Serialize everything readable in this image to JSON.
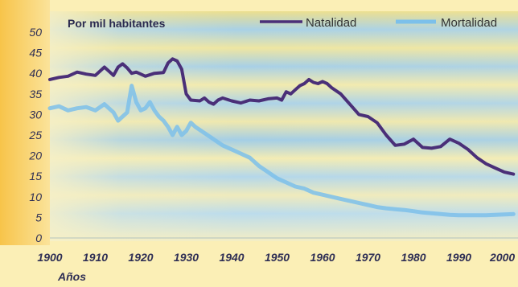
{
  "chart_data": {
    "type": "line",
    "unit_label": "Por mil habitantes",
    "xlabel": "Años",
    "ylabel": "",
    "xlim": [
      1900,
      2003
    ],
    "ylim": [
      0,
      50
    ],
    "x_ticks": [
      1900,
      1910,
      1920,
      1930,
      1940,
      1950,
      1960,
      1970,
      1980,
      1990,
      2000
    ],
    "y_ticks": [
      0,
      5,
      10,
      15,
      20,
      25,
      30,
      35,
      40,
      45,
      50
    ],
    "legend_position": "top-right",
    "grid": false,
    "series": [
      {
        "name": "Natalidad",
        "color": "#4a2f78",
        "points": [
          [
            1900,
            38.5
          ],
          [
            1902,
            39
          ],
          [
            1904,
            39.3
          ],
          [
            1906,
            40.3
          ],
          [
            1908,
            39.8
          ],
          [
            1910,
            39.5
          ],
          [
            1912,
            41.5
          ],
          [
            1913,
            40.5
          ],
          [
            1914,
            39.5
          ],
          [
            1915,
            41.5
          ],
          [
            1916,
            42.3
          ],
          [
            1917,
            41.3
          ],
          [
            1918,
            40
          ],
          [
            1919,
            40.3
          ],
          [
            1920,
            39.8
          ],
          [
            1921,
            39.3
          ],
          [
            1923,
            40
          ],
          [
            1925,
            40.2
          ],
          [
            1926,
            42.5
          ],
          [
            1927,
            43.5
          ],
          [
            1928,
            43
          ],
          [
            1929,
            41
          ],
          [
            1930,
            35
          ],
          [
            1931,
            33.5
          ],
          [
            1933,
            33.3
          ],
          [
            1934,
            34
          ],
          [
            1935,
            33
          ],
          [
            1936,
            32.5
          ],
          [
            1937,
            33.5
          ],
          [
            1938,
            34
          ],
          [
            1940,
            33.3
          ],
          [
            1942,
            32.8
          ],
          [
            1944,
            33.5
          ],
          [
            1946,
            33.3
          ],
          [
            1948,
            33.8
          ],
          [
            1950,
            34
          ],
          [
            1951,
            33.5
          ],
          [
            1952,
            35.5
          ],
          [
            1953,
            35
          ],
          [
            1954,
            36
          ],
          [
            1955,
            37
          ],
          [
            1956,
            37.5
          ],
          [
            1957,
            38.5
          ],
          [
            1958,
            37.8
          ],
          [
            1959,
            37.5
          ],
          [
            1960,
            38
          ],
          [
            1961,
            37.5
          ],
          [
            1962,
            36.5
          ],
          [
            1964,
            35
          ],
          [
            1966,
            32.5
          ],
          [
            1968,
            30
          ],
          [
            1970,
            29.5
          ],
          [
            1972,
            28
          ],
          [
            1974,
            25
          ],
          [
            1976,
            22.5
          ],
          [
            1978,
            22.8
          ],
          [
            1980,
            24
          ],
          [
            1982,
            22
          ],
          [
            1984,
            21.8
          ],
          [
            1986,
            22.2
          ],
          [
            1988,
            24
          ],
          [
            1990,
            23
          ],
          [
            1992,
            21.5
          ],
          [
            1994,
            19.5
          ],
          [
            1996,
            18
          ],
          [
            1998,
            17
          ],
          [
            2000,
            16
          ],
          [
            2002,
            15.5
          ]
        ]
      },
      {
        "name": "Mortalidad",
        "color": "#7cc0ea",
        "points": [
          [
            1900,
            31.5
          ],
          [
            1902,
            32
          ],
          [
            1904,
            31
          ],
          [
            1906,
            31.5
          ],
          [
            1908,
            31.8
          ],
          [
            1910,
            31
          ],
          [
            1912,
            32.5
          ],
          [
            1914,
            30.5
          ],
          [
            1915,
            28.5
          ],
          [
            1916,
            29.5
          ],
          [
            1917,
            30.5
          ],
          [
            1918,
            37
          ],
          [
            1919,
            33
          ],
          [
            1920,
            31
          ],
          [
            1921,
            31.5
          ],
          [
            1922,
            33
          ],
          [
            1923,
            31
          ],
          [
            1924,
            29.5
          ],
          [
            1925,
            28.5
          ],
          [
            1926,
            27
          ],
          [
            1927,
            25
          ],
          [
            1928,
            27
          ],
          [
            1929,
            25
          ],
          [
            1930,
            26
          ],
          [
            1931,
            28
          ],
          [
            1932,
            27
          ],
          [
            1934,
            25.5
          ],
          [
            1936,
            24
          ],
          [
            1938,
            22.5
          ],
          [
            1940,
            21.5
          ],
          [
            1942,
            20.5
          ],
          [
            1944,
            19.5
          ],
          [
            1946,
            17.5
          ],
          [
            1948,
            16
          ],
          [
            1950,
            14.5
          ],
          [
            1952,
            13.5
          ],
          [
            1954,
            12.5
          ],
          [
            1956,
            12
          ],
          [
            1958,
            11
          ],
          [
            1960,
            10.5
          ],
          [
            1962,
            10
          ],
          [
            1964,
            9.5
          ],
          [
            1966,
            9
          ],
          [
            1968,
            8.5
          ],
          [
            1970,
            8
          ],
          [
            1972,
            7.5
          ],
          [
            1974,
            7.2
          ],
          [
            1976,
            7
          ],
          [
            1978,
            6.8
          ],
          [
            1980,
            6.5
          ],
          [
            1982,
            6.2
          ],
          [
            1984,
            6
          ],
          [
            1986,
            5.8
          ],
          [
            1988,
            5.6
          ],
          [
            1990,
            5.5
          ],
          [
            1992,
            5.5
          ],
          [
            1994,
            5.5
          ],
          [
            1996,
            5.5
          ],
          [
            1998,
            5.6
          ],
          [
            2000,
            5.7
          ],
          [
            2002,
            5.8
          ]
        ]
      }
    ]
  }
}
